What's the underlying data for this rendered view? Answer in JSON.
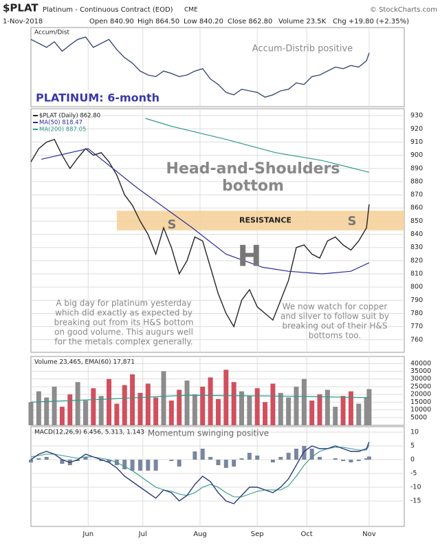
{
  "header": {
    "symbol": "$PLAT",
    "name": "Platinum - Continuous Contract (EOD)",
    "exchange": "CME",
    "source": "© StockCharts.com",
    "date": "1-Nov-2018",
    "quote": [
      "Open 840.90",
      "High 864.50",
      "Low 840.20",
      "Close 862.80",
      "Volume 23.5K",
      "Chg +19.80 (+2.35%)"
    ]
  },
  "x_axis": {
    "xlim": [
      0,
      143.5
    ],
    "xticks": [
      {
        "value": 22,
        "label": "Jun"
      },
      {
        "value": 43,
        "label": "Jul"
      },
      {
        "value": 65,
        "label": "Aug"
      },
      {
        "value": 87,
        "label": "Sep"
      },
      {
        "value": 106,
        "label": "Oct"
      },
      {
        "value": 130,
        "label": "Nov"
      }
    ]
  },
  "chart_data": [
    {
      "type": "line",
      "legend": "Accum/Dist",
      "title": "PLATINUM: 6-month",
      "annotation": "Accum-Distrib positive",
      "color": "#3a4a78",
      "ylim": [
        0,
        100
      ],
      "x": [
        0,
        3,
        6,
        9,
        12,
        15,
        18,
        21,
        24,
        27,
        30,
        33,
        36,
        39,
        42,
        45,
        48,
        51,
        54,
        57,
        60,
        63,
        66,
        69,
        72,
        75,
        78,
        81,
        84,
        87,
        90,
        93,
        96,
        99,
        102,
        105,
        108,
        111,
        114,
        117,
        120,
        123,
        126,
        129,
        130
      ],
      "values": [
        85,
        80,
        75,
        82,
        70,
        78,
        85,
        88,
        75,
        80,
        85,
        72,
        62,
        55,
        45,
        40,
        38,
        45,
        42,
        38,
        40,
        45,
        48,
        35,
        28,
        18,
        15,
        22,
        20,
        18,
        12,
        15,
        20,
        22,
        30,
        28,
        38,
        40,
        45,
        50,
        48,
        52,
        50,
        58,
        68
      ]
    },
    {
      "type": "line",
      "ylim": [
        750.5,
        935.3
      ],
      "yticks": [
        760,
        770,
        780,
        790,
        800,
        810,
        820,
        830,
        840,
        850,
        860,
        870,
        880,
        890,
        900,
        910,
        920,
        930
      ],
      "series": [
        {
          "name": "$PLAT (Daily) 862.80",
          "color": "#222222",
          "x": [
            0,
            3,
            6,
            9,
            12,
            15,
            18,
            21,
            24,
            27,
            30,
            33,
            36,
            39,
            42,
            45,
            48,
            51,
            54,
            57,
            60,
            63,
            66,
            69,
            72,
            75,
            78,
            81,
            84,
            87,
            90,
            93,
            96,
            99,
            102,
            105,
            108,
            111,
            114,
            117,
            120,
            123,
            126,
            129,
            130
          ],
          "values": [
            895,
            905,
            910,
            912,
            900,
            890,
            898,
            905,
            900,
            902,
            895,
            885,
            870,
            862,
            850,
            840,
            825,
            845,
            830,
            810,
            820,
            838,
            835,
            815,
            795,
            780,
            770,
            790,
            798,
            785,
            780,
            775,
            790,
            805,
            830,
            832,
            825,
            822,
            835,
            838,
            832,
            828,
            835,
            845,
            862.8
          ]
        },
        {
          "name": "MA(50) 818.47",
          "color": "#2a2a9a",
          "x": [
            4,
            22,
            41,
            62,
            75,
            89,
            99,
            112,
            123,
            130
          ],
          "values": [
            897,
            905,
            875,
            845,
            825,
            815,
            812,
            810,
            812,
            818.47
          ]
        },
        {
          "name": "MA(200) 887.05",
          "color": "#2e9a8a",
          "x": [
            44,
            54,
            75,
            94,
            112,
            130
          ],
          "values": [
            928,
            922,
            912,
            902,
            896,
            887.05
          ]
        }
      ],
      "band": {
        "range": [
          843,
          858
        ],
        "label": "RESISTANCE",
        "color": "#f6cf96"
      },
      "title_lines": [
        "Head-and-Shoulders",
        "bottom"
      ],
      "pattern_labels": [
        "S",
        "H",
        "S"
      ],
      "notes": [
        [
          "A big day for platinum yesterday",
          "which did exactly as expected by",
          "breaking out from its H&S bottom",
          "on good volume. This augurs well",
          "for the metals complex generally."
        ],
        [
          "We now watch for copper",
          "and silver to follow suit by",
          "breaking out of their H&S",
          "bottoms too."
        ]
      ]
    },
    {
      "type": "bar",
      "legend": "Volume 23,465, EMA(60) 17,871",
      "up_color": "#8c8c8c",
      "down_color": "#d0505e",
      "ylim": [
        0,
        44600
      ],
      "yticks": [
        5000,
        10000,
        15000,
        20000,
        25000,
        30000,
        35000,
        40000
      ],
      "x": [
        0,
        3,
        6,
        9,
        12,
        15,
        18,
        21,
        24,
        27,
        30,
        33,
        36,
        39,
        42,
        45,
        48,
        51,
        54,
        57,
        60,
        63,
        66,
        69,
        72,
        75,
        78,
        81,
        84,
        87,
        90,
        93,
        96,
        99,
        102,
        105,
        108,
        111,
        114,
        117,
        120,
        123,
        126,
        129,
        130
      ],
      "values": [
        15000,
        22000,
        18000,
        25000,
        12000,
        20000,
        28000,
        16000,
        24000,
        19000,
        30000,
        14000,
        26000,
        33000,
        21000,
        27000,
        18000,
        35000,
        16000,
        23000,
        29000,
        20000,
        25000,
        31000,
        17000,
        36000,
        28000,
        22000,
        19000,
        24000,
        15000,
        27000,
        21000,
        18000,
        25000,
        30000,
        16000,
        20000,
        23000,
        12000,
        19000,
        22000,
        14000,
        18000,
        23465
      ],
      "ema": {
        "color": "#2e9a8a",
        "x": [
          0,
          30,
          60,
          90,
          110,
          130
        ],
        "values": [
          15000,
          17000,
          19500,
          19000,
          18500,
          17871
        ]
      }
    },
    {
      "type": "macd",
      "legend": "MACD(12,26,9) 6.456, 5.313, 1.143",
      "annotation": "Momentum swinging positive",
      "ylim": [
        -24.25,
        12
      ],
      "yticks": [
        10,
        5,
        0,
        -5,
        -10,
        -15
      ],
      "x": [
        0,
        3,
        6,
        9,
        12,
        15,
        18,
        21,
        24,
        27,
        30,
        33,
        36,
        39,
        42,
        45,
        48,
        51,
        54,
        57,
        60,
        63,
        66,
        69,
        72,
        75,
        78,
        81,
        84,
        87,
        90,
        93,
        96,
        99,
        102,
        105,
        108,
        111,
        114,
        117,
        120,
        123,
        126,
        129,
        130
      ],
      "macd": {
        "color": "#2a3a7a",
        "values": [
          0,
          2,
          3,
          2,
          0,
          -1,
          0,
          2,
          1,
          0,
          -1,
          -3,
          -6,
          -8,
          -10,
          -12,
          -14,
          -11,
          -12,
          -15,
          -13,
          -9,
          -6,
          -8,
          -12,
          -15,
          -16,
          -13,
          -10,
          -10,
          -11,
          -12,
          -10,
          -7,
          -2,
          3,
          5,
          4,
          4,
          5,
          4,
          3,
          3,
          4,
          6.456
        ]
      },
      "signal": {
        "color": "#2e9a8a",
        "values": [
          1,
          1.5,
          2,
          2,
          1.5,
          1,
          0.5,
          1,
          1,
          0.5,
          0,
          -1,
          -2.5,
          -4,
          -6,
          -8,
          -10,
          -11,
          -11.5,
          -12.5,
          -13,
          -12,
          -10,
          -9,
          -10,
          -12,
          -13.5,
          -13.5,
          -12.5,
          -11.5,
          -11,
          -11,
          -11,
          -9.5,
          -6,
          -2,
          1,
          3,
          4,
          4.5,
          4.5,
          4,
          3.5,
          3.5,
          5.313
        ]
      },
      "histogram": {
        "color": "#7a86a0",
        "values": [
          -1,
          0.5,
          1,
          0,
          -1.5,
          -2,
          -0.5,
          1,
          0,
          -0.5,
          -1,
          -2,
          -3.5,
          -4,
          -4,
          -4,
          -4,
          0,
          -0.5,
          -2.5,
          0,
          3,
          4,
          1,
          -2,
          -3,
          -2.5,
          0.5,
          2.5,
          1.5,
          0,
          -1,
          1,
          2.5,
          4,
          5,
          4,
          1,
          0,
          0.5,
          -0.5,
          -1,
          -0.5,
          0.5,
          1.143
        ]
      }
    }
  ]
}
